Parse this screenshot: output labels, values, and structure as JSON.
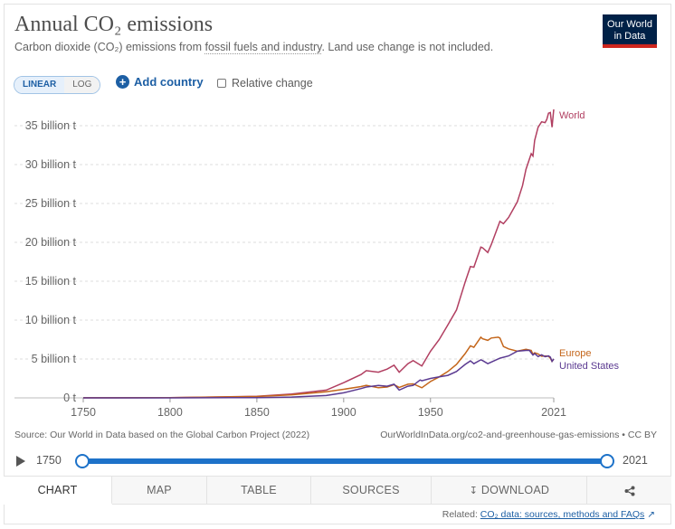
{
  "header": {
    "title": "Annual CO₂ emissions",
    "subtitle_prefix": "Carbon dioxide (CO₂) emissions from ",
    "subtitle_link": "fossil fuels and industry",
    "subtitle_suffix": ". Land use change is not included.",
    "logo_line1": "Our World",
    "logo_line2": "in Data"
  },
  "controls": {
    "linear_label": "LINEAR",
    "log_label": "LOG",
    "add_country_label": "Add country",
    "relative_change_label": "Relative change"
  },
  "footer": {
    "source": "Source: Our World in Data based on the Global Carbon Project (2022)",
    "url": "OurWorldInData.org/co2-and-greenhouse-gas-emissions • CC BY",
    "timeline_start": "1750",
    "timeline_end": "2021",
    "related_prefix": "Related: ",
    "related_link": "CO₂ data: sources, methods and FAQs"
  },
  "tabs": {
    "chart": "CHART",
    "map": "MAP",
    "table": "TABLE",
    "sources": "SOURCES",
    "download": "DOWNLOAD"
  },
  "icons": {
    "play": "play-icon",
    "share": "share-icon",
    "download": "download-icon",
    "external_link": "external-link-icon"
  },
  "colors": {
    "world": "#b13f61",
    "europe": "#c4661b",
    "united_states": "#5b3a91",
    "accent": "#1d72c9"
  },
  "chart_data": {
    "type": "line",
    "title": "Annual CO₂ emissions",
    "xlabel": "",
    "ylabel": "",
    "xlim": [
      1750,
      2021
    ],
    "ylim": [
      0,
      37
    ],
    "x_ticks": [
      1750,
      1800,
      1850,
      1900,
      1950,
      2021
    ],
    "y_ticks": [
      {
        "value": 0,
        "label": "0 t"
      },
      {
        "value": 5,
        "label": "5 billion t"
      },
      {
        "value": 10,
        "label": "10 billion t"
      },
      {
        "value": 15,
        "label": "15 billion t"
      },
      {
        "value": 20,
        "label": "20 billion t"
      },
      {
        "value": 25,
        "label": "25 billion t"
      },
      {
        "value": 30,
        "label": "30 billion t"
      },
      {
        "value": 35,
        "label": "35 billion t"
      }
    ],
    "grid": "horizontal",
    "legend": "end-of-line labels",
    "series": [
      {
        "name": "World",
        "color": "#b13f61",
        "points": [
          [
            1750,
            0.01
          ],
          [
            1800,
            0.03
          ],
          [
            1850,
            0.2
          ],
          [
            1870,
            0.5
          ],
          [
            1890,
            1.0
          ],
          [
            1900,
            1.95
          ],
          [
            1910,
            3.0
          ],
          [
            1913,
            3.5
          ],
          [
            1920,
            3.3
          ],
          [
            1925,
            3.7
          ],
          [
            1929,
            4.2
          ],
          [
            1932,
            3.3
          ],
          [
            1937,
            4.4
          ],
          [
            1940,
            4.8
          ],
          [
            1945,
            4.1
          ],
          [
            1950,
            6.0
          ],
          [
            1955,
            7.5
          ],
          [
            1960,
            9.4
          ],
          [
            1965,
            11.3
          ],
          [
            1970,
            14.9
          ],
          [
            1973,
            16.9
          ],
          [
            1975,
            16.8
          ],
          [
            1979,
            19.4
          ],
          [
            1980,
            19.3
          ],
          [
            1983,
            18.7
          ],
          [
            1985,
            19.7
          ],
          [
            1990,
            22.7
          ],
          [
            1992,
            22.4
          ],
          [
            1995,
            23.2
          ],
          [
            2000,
            25.2
          ],
          [
            2003,
            27.3
          ],
          [
            2005,
            29.4
          ],
          [
            2008,
            31.4
          ],
          [
            2009,
            31.1
          ],
          [
            2010,
            33.1
          ],
          [
            2012,
            34.8
          ],
          [
            2014,
            35.5
          ],
          [
            2016,
            35.4
          ],
          [
            2017,
            35.8
          ],
          [
            2018,
            36.6
          ],
          [
            2019,
            36.7
          ],
          [
            2020,
            34.8
          ],
          [
            2021,
            37.1
          ]
        ]
      },
      {
        "name": "Europe",
        "color": "#c4661b",
        "points": [
          [
            1750,
            0.01
          ],
          [
            1800,
            0.03
          ],
          [
            1850,
            0.17
          ],
          [
            1870,
            0.4
          ],
          [
            1890,
            0.78
          ],
          [
            1900,
            1.1
          ],
          [
            1910,
            1.45
          ],
          [
            1913,
            1.6
          ],
          [
            1920,
            1.3
          ],
          [
            1925,
            1.4
          ],
          [
            1929,
            1.7
          ],
          [
            1932,
            1.35
          ],
          [
            1937,
            1.75
          ],
          [
            1940,
            1.8
          ],
          [
            1945,
            1.3
          ],
          [
            1950,
            2.1
          ],
          [
            1955,
            2.7
          ],
          [
            1960,
            3.4
          ],
          [
            1965,
            4.3
          ],
          [
            1970,
            5.7
          ],
          [
            1973,
            6.7
          ],
          [
            1975,
            6.5
          ],
          [
            1979,
            7.8
          ],
          [
            1980,
            7.6
          ],
          [
            1983,
            7.4
          ],
          [
            1985,
            7.7
          ],
          [
            1989,
            7.8
          ],
          [
            1990,
            7.7
          ],
          [
            1992,
            6.6
          ],
          [
            1995,
            6.3
          ],
          [
            2000,
            6.0
          ],
          [
            2005,
            6.25
          ],
          [
            2008,
            6.1
          ],
          [
            2009,
            5.6
          ],
          [
            2010,
            5.8
          ],
          [
            2012,
            5.65
          ],
          [
            2014,
            5.35
          ],
          [
            2016,
            5.4
          ],
          [
            2018,
            5.35
          ],
          [
            2019,
            5.1
          ],
          [
            2020,
            4.7
          ],
          [
            2021,
            5.0
          ]
        ]
      },
      {
        "name": "United States",
        "color": "#5b3a91",
        "points": [
          [
            1750,
            0.0
          ],
          [
            1800,
            0.001
          ],
          [
            1850,
            0.03
          ],
          [
            1870,
            0.1
          ],
          [
            1890,
            0.3
          ],
          [
            1900,
            0.65
          ],
          [
            1910,
            1.2
          ],
          [
            1913,
            1.4
          ],
          [
            1920,
            1.6
          ],
          [
            1925,
            1.5
          ],
          [
            1929,
            1.75
          ],
          [
            1932,
            1.0
          ],
          [
            1937,
            1.5
          ],
          [
            1940,
            1.6
          ],
          [
            1944,
            2.3
          ],
          [
            1945,
            2.2
          ],
          [
            1950,
            2.5
          ],
          [
            1955,
            2.7
          ],
          [
            1960,
            2.9
          ],
          [
            1965,
            3.4
          ],
          [
            1970,
            4.3
          ],
          [
            1973,
            4.75
          ],
          [
            1975,
            4.4
          ],
          [
            1979,
            4.9
          ],
          [
            1980,
            4.8
          ],
          [
            1983,
            4.4
          ],
          [
            1985,
            4.6
          ],
          [
            1990,
            5.1
          ],
          [
            1995,
            5.4
          ],
          [
            2000,
            6.0
          ],
          [
            2005,
            6.1
          ],
          [
            2007,
            6.1
          ],
          [
            2009,
            5.5
          ],
          [
            2010,
            5.7
          ],
          [
            2012,
            5.3
          ],
          [
            2014,
            5.55
          ],
          [
            2016,
            5.3
          ],
          [
            2018,
            5.4
          ],
          [
            2019,
            5.25
          ],
          [
            2020,
            4.7
          ],
          [
            2021,
            5.0
          ]
        ]
      }
    ]
  }
}
